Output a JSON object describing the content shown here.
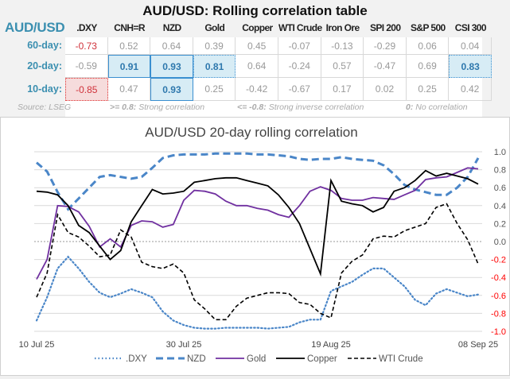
{
  "table": {
    "title": "AUD/USD: Rolling correlation table",
    "corner_label": "AUD/USD",
    "columns": [
      ".DXY",
      "CNH=R",
      "NZD",
      "Gold",
      "Copper",
      "WTI Crude",
      "Iron Ore",
      "SPI 200",
      "S&P 500",
      "CSI 300"
    ],
    "rows": [
      {
        "label": "60-day:",
        "values": [
          "-0.73",
          "0.52",
          "0.64",
          "0.39",
          "0.45",
          "-0.07",
          "-0.13",
          "-0.29",
          "0.06",
          "0.04"
        ]
      },
      {
        "label": "20-day:",
        "values": [
          "-0.59",
          "0.91",
          "0.93",
          "0.81",
          "0.64",
          "-0.24",
          "0.57",
          "-0.47",
          "0.69",
          "0.83"
        ]
      },
      {
        "label": "10-day:",
        "values": [
          "-0.85",
          "0.47",
          "0.93",
          "0.25",
          "-0.42",
          "-0.67",
          "0.17",
          "0.02",
          "0.25",
          "0.42"
        ]
      }
    ],
    "footer": {
      "source": "Source: LSEG",
      "strong_key": ">= 0.8:",
      "strong_text": "Strong correlation",
      "inverse_key": "<= -0.8:",
      "inverse_text": "Strong inverse correlation",
      "zero_key": "0:",
      "zero_text": "No correlation"
    },
    "colors": {
      "label": "#3b8fb0",
      "highlight": "#d7ecf5",
      "negative": "#d0323b"
    }
  },
  "chart_data": {
    "type": "line",
    "title": "AUD/USD 20-day rolling correlation",
    "x_tick_labels": [
      "10 Jul 25",
      "30 Jul 25",
      "19 Aug 25",
      "08 Sep 25"
    ],
    "x_tick_index": [
      0,
      14,
      28,
      42
    ],
    "ylim": [
      -1.0,
      1.0
    ],
    "y_ticks": [
      "1.0",
      "0.8",
      "0.6",
      "0.4",
      "0.2",
      "0.0",
      "-0.2",
      "-0.4",
      "-0.6",
      "-0.8",
      "-1.0"
    ],
    "y_axis_side": "right",
    "negative_tick_color": "#ff0000",
    "grid": true,
    "legend": "bottom",
    "series": [
      {
        "name": ".DXY",
        "color": "#4a86c8",
        "style": "dotted",
        "values": [
          -0.88,
          -0.62,
          -0.3,
          -0.17,
          -0.3,
          -0.45,
          -0.57,
          -0.62,
          -0.58,
          -0.53,
          -0.57,
          -0.62,
          -0.78,
          -0.88,
          -0.93,
          -0.96,
          -0.97,
          -0.97,
          -0.96,
          -0.96,
          -0.96,
          -0.96,
          -0.97,
          -0.96,
          -0.95,
          -0.9,
          -0.87,
          -0.87,
          -0.55,
          -0.5,
          -0.45,
          -0.37,
          -0.3,
          -0.3,
          -0.4,
          -0.5,
          -0.65,
          -0.71,
          -0.58,
          -0.53,
          -0.57,
          -0.61,
          -0.59
        ]
      },
      {
        "name": "NZD",
        "color": "#4a86c8",
        "style": "dashed",
        "values": [
          0.88,
          0.78,
          0.55,
          0.36,
          0.48,
          0.6,
          0.72,
          0.74,
          0.72,
          0.7,
          0.72,
          0.82,
          0.93,
          0.96,
          0.97,
          0.97,
          0.97,
          0.98,
          0.98,
          0.98,
          0.98,
          0.97,
          0.97,
          0.96,
          0.95,
          0.92,
          0.91,
          0.92,
          0.92,
          0.94,
          0.92,
          0.91,
          0.9,
          0.85,
          0.75,
          0.63,
          0.58,
          0.55,
          0.52,
          0.52,
          0.6,
          0.72,
          0.93
        ]
      },
      {
        "name": "Gold",
        "color": "#7030a0",
        "style": "solid",
        "values": [
          -0.42,
          -0.2,
          0.4,
          0.39,
          0.33,
          0.17,
          -0.06,
          0.03,
          -0.06,
          0.18,
          0.23,
          0.22,
          0.16,
          0.19,
          0.46,
          0.57,
          0.56,
          0.53,
          0.45,
          0.4,
          0.4,
          0.37,
          0.35,
          0.3,
          0.27,
          0.4,
          0.56,
          0.61,
          0.57,
          0.48,
          0.46,
          0.46,
          0.49,
          0.48,
          0.47,
          0.52,
          0.57,
          0.69,
          0.71,
          0.72,
          0.77,
          0.82,
          0.81
        ]
      },
      {
        "name": "Copper",
        "color": "#000000",
        "style": "solid",
        "values": [
          0.56,
          0.55,
          0.52,
          0.4,
          0.18,
          0.1,
          -0.05,
          -0.2,
          -0.1,
          0.22,
          0.4,
          0.58,
          0.53,
          0.54,
          0.56,
          0.66,
          0.68,
          0.7,
          0.71,
          0.71,
          0.68,
          0.65,
          0.62,
          0.52,
          0.38,
          0.2,
          -0.08,
          -0.36,
          0.68,
          0.45,
          0.42,
          0.4,
          0.33,
          0.38,
          0.56,
          0.6,
          0.68,
          0.79,
          0.73,
          0.76,
          0.73,
          0.7,
          0.64
        ]
      },
      {
        "name": "WTI Crude",
        "color": "#000000",
        "style": "dashed-thin",
        "values": [
          -0.62,
          -0.35,
          0.3,
          0.1,
          0.05,
          -0.05,
          -0.17,
          -0.15,
          0.13,
          0.05,
          -0.23,
          -0.28,
          -0.3,
          -0.25,
          -0.35,
          -0.65,
          -0.75,
          -0.87,
          -0.87,
          -0.72,
          -0.63,
          -0.6,
          -0.57,
          -0.57,
          -0.58,
          -0.68,
          -0.7,
          -0.8,
          -0.85,
          -0.35,
          -0.22,
          -0.15,
          0.03,
          0.06,
          0.05,
          0.12,
          0.16,
          0.2,
          0.38,
          0.42,
          0.2,
          0.02,
          -0.25
        ]
      }
    ]
  }
}
